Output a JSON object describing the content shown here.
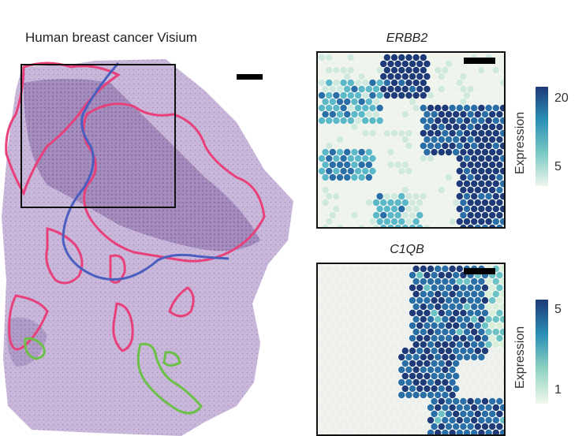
{
  "figure": {
    "title": "Human breast cancer Visium",
    "panels": [
      {
        "gene": "ERBB2",
        "colorbar": {
          "label": "Expression",
          "ticks": [
            "20",
            "5"
          ],
          "colors": [
            "#1e3a78",
            "#2a8fb6",
            "#79c9c4",
            "#eef6ec"
          ]
        }
      },
      {
        "gene": "C1QB",
        "colorbar": {
          "label": "Expression",
          "ticks": [
            "5",
            "1"
          ],
          "colors": [
            "#1e3a78",
            "#2a8fb6",
            "#8fd3c2",
            "#f1f8ec"
          ]
        }
      }
    ],
    "outline_colors": {
      "tumor": "#e8407a",
      "boundary": "#4a5fc0",
      "immune": "#6cc04a"
    }
  }
}
